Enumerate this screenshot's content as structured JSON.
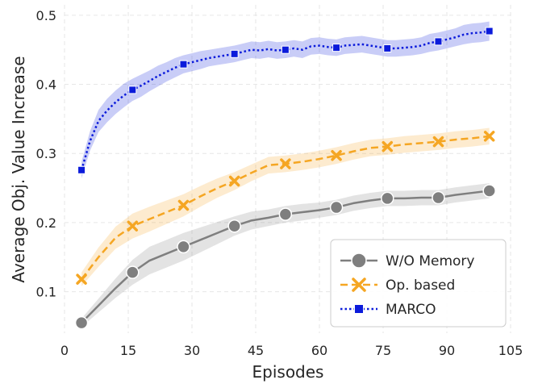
{
  "chart_data": {
    "type": "line",
    "xlabel": "Episodes",
    "ylabel": "Average Obj. Value Increase",
    "xlim": [
      0,
      105
    ],
    "ylim": [
      0.04,
      0.515
    ],
    "x_ticks": [
      0,
      15,
      30,
      45,
      60,
      75,
      90,
      105
    ],
    "y_ticks": [
      0.1,
      0.2,
      0.3,
      0.4,
      0.5
    ],
    "grid": true,
    "legend_position": "lower-right",
    "series": [
      {
        "name": "W/O Memory",
        "color": "#7f7f7f",
        "line_style": "solid",
        "marker": "circle",
        "x": [
          4,
          8,
          12,
          16,
          20,
          24,
          28,
          32,
          36,
          40,
          44,
          48,
          52,
          56,
          60,
          64,
          68,
          72,
          76,
          80,
          84,
          88,
          92,
          96,
          100
        ],
        "y": [
          0.055,
          0.08,
          0.105,
          0.128,
          0.145,
          0.155,
          0.165,
          0.175,
          0.185,
          0.195,
          0.203,
          0.207,
          0.212,
          0.215,
          0.218,
          0.222,
          0.228,
          0.232,
          0.235,
          0.235,
          0.236,
          0.236,
          0.24,
          0.243,
          0.246
        ],
        "band": [
          0.006,
          0.01,
          0.014,
          0.018,
          0.02,
          0.02,
          0.02,
          0.018,
          0.016,
          0.014,
          0.013,
          0.012,
          0.012,
          0.012,
          0.011,
          0.011,
          0.011,
          0.011,
          0.011,
          0.011,
          0.011,
          0.011,
          0.011,
          0.011,
          0.011
        ]
      },
      {
        "name": "Op. based",
        "color": "#f5a623",
        "line_style": "dashed",
        "marker": "x",
        "x": [
          4,
          8,
          12,
          16,
          20,
          24,
          28,
          32,
          36,
          40,
          44,
          48,
          52,
          56,
          60,
          64,
          68,
          72,
          76,
          80,
          84,
          88,
          92,
          96,
          100
        ],
        "y": [
          0.118,
          0.15,
          0.178,
          0.195,
          0.205,
          0.215,
          0.225,
          0.238,
          0.25,
          0.26,
          0.272,
          0.283,
          0.285,
          0.288,
          0.292,
          0.297,
          0.303,
          0.308,
          0.31,
          0.313,
          0.315,
          0.317,
          0.32,
          0.322,
          0.325
        ],
        "band": [
          0.01,
          0.014,
          0.016,
          0.018,
          0.018,
          0.017,
          0.016,
          0.015,
          0.014,
          0.013,
          0.012,
          0.012,
          0.012,
          0.012,
          0.012,
          0.012,
          0.012,
          0.012,
          0.012,
          0.012,
          0.012,
          0.012,
          0.012,
          0.012,
          0.012
        ]
      },
      {
        "name": "MARCO",
        "color": "#0b1bdb",
        "line_style": "dotted",
        "marker": "square",
        "x": [
          4,
          6,
          8,
          10,
          12,
          14,
          16,
          18,
          20,
          22,
          24,
          26,
          28,
          30,
          32,
          34,
          36,
          38,
          40,
          42,
          44,
          46,
          48,
          50,
          52,
          54,
          56,
          58,
          60,
          62,
          64,
          66,
          68,
          70,
          72,
          74,
          76,
          78,
          80,
          82,
          84,
          86,
          88,
          90,
          92,
          94,
          96,
          98,
          100
        ],
        "y": [
          0.276,
          0.318,
          0.347,
          0.362,
          0.374,
          0.384,
          0.392,
          0.398,
          0.405,
          0.412,
          0.418,
          0.424,
          0.429,
          0.432,
          0.435,
          0.438,
          0.44,
          0.442,
          0.444,
          0.447,
          0.45,
          0.449,
          0.451,
          0.449,
          0.45,
          0.452,
          0.45,
          0.455,
          0.456,
          0.454,
          0.453,
          0.456,
          0.457,
          0.458,
          0.456,
          0.454,
          0.452,
          0.452,
          0.453,
          0.454,
          0.456,
          0.46,
          0.462,
          0.465,
          0.468,
          0.472,
          0.474,
          0.475,
          0.477
        ],
        "band": [
          0.012,
          0.014,
          0.016,
          0.017,
          0.017,
          0.017,
          0.016,
          0.016,
          0.015,
          0.015,
          0.014,
          0.014,
          0.013,
          0.013,
          0.013,
          0.012,
          0.012,
          0.012,
          0.012,
          0.012,
          0.012,
          0.012,
          0.012,
          0.012,
          0.012,
          0.012,
          0.012,
          0.012,
          0.012,
          0.012,
          0.012,
          0.012,
          0.012,
          0.012,
          0.012,
          0.012,
          0.012,
          0.012,
          0.012,
          0.012,
          0.012,
          0.013,
          0.013,
          0.013,
          0.013,
          0.014,
          0.014,
          0.014,
          0.014
        ]
      }
    ]
  }
}
